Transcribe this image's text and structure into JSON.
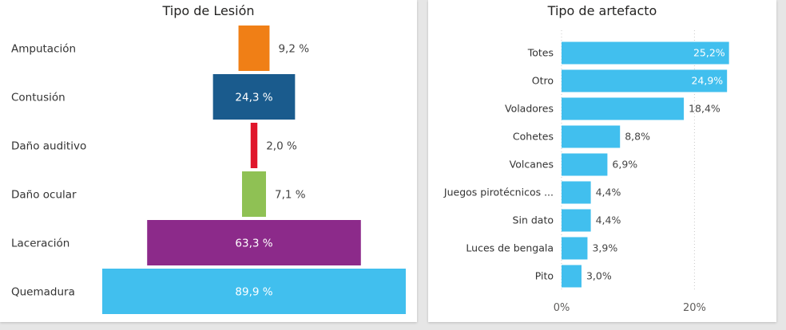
{
  "chart_data": [
    {
      "type": "funnel",
      "title": "Tipo de Lesión",
      "categories": [
        "Amputación",
        "Contusión",
        "Daño auditivo",
        "Daño ocular",
        "Laceración",
        "Quemadura"
      ],
      "values": [
        9.2,
        24.3,
        2.0,
        7.1,
        63.3,
        89.9
      ],
      "value_labels": [
        "9,2 %",
        "24,3 %",
        "2,0 %",
        "7,1 %",
        "63,3 %",
        "89,9 %"
      ],
      "colors": [
        "#f07f16",
        "#1a5b8d",
        "#e0162b",
        "#8fc154",
        "#8c2a8a",
        "#41bfee"
      ],
      "grid": false
    },
    {
      "type": "bar",
      "orientation": "horizontal",
      "title": "Tipo de artefacto",
      "categories": [
        "Totes",
        "Otro",
        "Voladores",
        "Cohetes",
        "Volcanes",
        "Juegos pirotécnicos ...",
        "Sin dato",
        "Luces de bengala",
        "Pito"
      ],
      "values": [
        25.2,
        24.9,
        18.4,
        8.8,
        6.9,
        4.4,
        4.4,
        3.9,
        3.0
      ],
      "value_labels": [
        "25,2%",
        "24,9%",
        "18,4%",
        "8,8%",
        "6,9%",
        "4,4%",
        "4,4%",
        "3,9%",
        "3,0%"
      ],
      "xlim": [
        0,
        25.6
      ],
      "x_ticks": [
        "0%",
        "20%"
      ],
      "x_tick_values": [
        0,
        20
      ],
      "bar_color": "#41bfee",
      "grid": true
    }
  ]
}
